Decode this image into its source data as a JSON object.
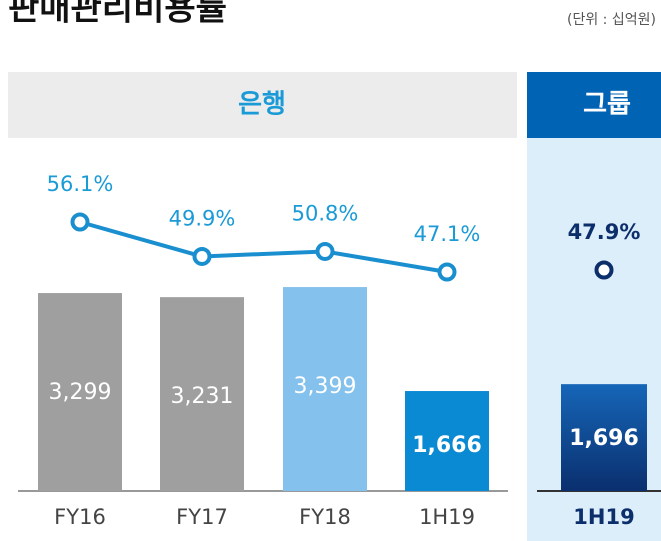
{
  "header": {
    "title": "판매관리비용률",
    "unit": "(단위 : 십억원)"
  },
  "chart_data": [
    {
      "type": "bar",
      "title": "은행",
      "categories": [
        "FY16",
        "FY17",
        "FY18",
        "1H19"
      ],
      "values": [
        3299,
        3231,
        3399,
        1666
      ],
      "value_labels": [
        "3,299",
        "3,231",
        "3,399",
        "1,666"
      ],
      "colors": [
        "#a09fa0",
        "#a09fa0",
        "#84c1ec",
        "#0a8ad2"
      ],
      "line": {
        "values": [
          56.1,
          49.9,
          50.8,
          47.1
        ],
        "value_labels": [
          "56.1%",
          "49.9%",
          "50.8%",
          "47.1%"
        ],
        "color": "#1a8fd0"
      }
    },
    {
      "type": "bar",
      "title": "그룹",
      "categories": [
        "1H19"
      ],
      "values": [
        1696
      ],
      "value_labels": [
        "1,696"
      ],
      "colors": [
        "#0c3d84"
      ],
      "line": {
        "values": [
          47.9
        ],
        "value_labels": [
          "47.9%"
        ],
        "color": "#0c2f6b"
      }
    }
  ]
}
